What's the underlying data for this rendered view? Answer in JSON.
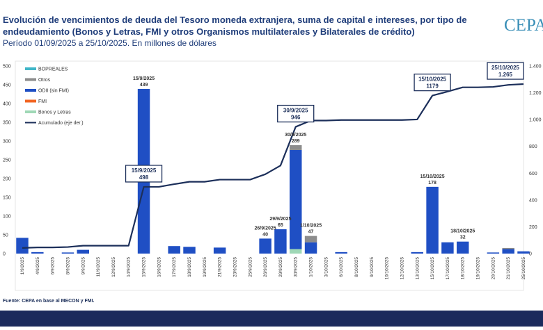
{
  "chart_data": {
    "type": "bar",
    "title_lines": [
      "Evolución de vencimientos de deuda del Tesoro moneda extranjera, suma de capital e intereses, por tipo de",
      "endeudamiento (Bonos y Letras, FMI y otros Organismos multilaterales y Bilaterales de crédito)"
    ],
    "subtitle": "Período 01/09/2025 a 25/10/2025. En millones de dólares",
    "logo": "CEPA",
    "source": "Fuente: CEPA en base al MECON y FMI.",
    "categories": [
      "1/9/2025",
      "4/9/2025",
      "6/9/2025",
      "8/9/2025",
      "9/9/2025",
      "11/9/2025",
      "12/9/2025",
      "14/9/2025",
      "15/9/2025",
      "16/9/2025",
      "17/9/2025",
      "18/9/2025",
      "19/9/2025",
      "21/9/2025",
      "23/9/2025",
      "25/9/2025",
      "26/9/2025",
      "29/9/2025",
      "30/9/2025",
      "1/10/2025",
      "3/10/2025",
      "6/10/2025",
      "8/10/2025",
      "9/10/2025",
      "10/10/2025",
      "12/10/2025",
      "13/10/2025",
      "15/10/2025",
      "17/10/2025",
      "18/10/2025",
      "19/10/2025",
      "20/10/2025",
      "21/10/2025",
      "25/10/2025"
    ],
    "series": [
      {
        "name": "BOPREALES",
        "color": "#3fb6c8",
        "values": [
          0,
          0,
          0,
          0,
          0,
          0,
          0,
          0,
          0,
          0,
          0,
          0,
          0,
          0,
          0,
          0,
          0,
          0,
          0,
          0,
          0,
          0,
          0,
          0,
          0,
          0,
          0,
          0,
          0,
          0,
          0,
          0,
          0,
          0
        ]
      },
      {
        "name": "Otros",
        "color": "#8c8c8c",
        "values": [
          0,
          0,
          0,
          0,
          0,
          0,
          0,
          0,
          0,
          0,
          0,
          0,
          0,
          0,
          0,
          0,
          0,
          0,
          13,
          17,
          0,
          0,
          0,
          0,
          0,
          0,
          0,
          0,
          0,
          0,
          0,
          0,
          3,
          0
        ]
      },
      {
        "name": "ODII (sin FMI)",
        "color": "#1f4fc4",
        "values": [
          42,
          4,
          0,
          3,
          10,
          0,
          0,
          0,
          439,
          0,
          20,
          18,
          0,
          16,
          0,
          0,
          40,
          65,
          264,
          30,
          0,
          4,
          0,
          0,
          0,
          0,
          4,
          178,
          30,
          32,
          0,
          3,
          12,
          6
        ]
      },
      {
        "name": "FMI",
        "color": "#f26522",
        "values": [
          0,
          0,
          0,
          0,
          0,
          0,
          0,
          0,
          0,
          0,
          0,
          0,
          0,
          0,
          0,
          0,
          0,
          0,
          0,
          0,
          0,
          0,
          0,
          0,
          0,
          0,
          0,
          0,
          0,
          0,
          0,
          0,
          0,
          0
        ]
      },
      {
        "name": "Bonos y Letras",
        "color": "#9fd8b6",
        "values": [
          0,
          0,
          0,
          0,
          0,
          0,
          0,
          0,
          0,
          0,
          0,
          0,
          0,
          0,
          0,
          0,
          0,
          0,
          12,
          0,
          0,
          0,
          0,
          0,
          0,
          0,
          0,
          0,
          0,
          0,
          0,
          0,
          0,
          0
        ]
      },
      {
        "name": "Acumulado (eje der.)",
        "color": "#1c2f5a",
        "axis": "y2",
        "values": [
          42,
          46,
          46,
          49,
          59,
          59,
          59,
          59,
          498,
          498,
          518,
          536,
          536,
          552,
          552,
          552,
          592,
          657,
          946,
          993,
          993,
          997,
          997,
          997,
          997,
          997,
          1001,
          1179,
          1209,
          1241,
          1241,
          1244,
          1259,
          1265
        ]
      }
    ],
    "bar_annotations": [
      {
        "label": "15/9/2025",
        "value": 439
      },
      {
        "label": "26/9/2025",
        "value": 40
      },
      {
        "label": "29/9/2025",
        "value": 65
      },
      {
        "label": "30/9/2025",
        "value": 289
      },
      {
        "label": "1/10/2025",
        "value": 47
      },
      {
        "label": "15/10/2025",
        "value": 178
      },
      {
        "label": "18/10/2025",
        "value": 32
      }
    ],
    "line_annotations": [
      {
        "label": "15/9/2025",
        "value": 498
      },
      {
        "label": "30/9/2025",
        "value": 946
      },
      {
        "label": "15/10/2025",
        "value": 1179
      },
      {
        "label": "25/10/2025",
        "value": 1265,
        "value_label": "1.265"
      }
    ],
    "ylim": [
      0,
      500
    ],
    "yticks": [
      0,
      50,
      100,
      150,
      200,
      250,
      300,
      350,
      400,
      450,
      500
    ],
    "y2lim": [
      0,
      1400
    ],
    "y2ticks": [
      0,
      200,
      400,
      600,
      800,
      {
        "value": 1000,
        "label": "1.000"
      },
      {
        "value": 1200,
        "label": "1.200"
      },
      {
        "value": 1400,
        "label": "1.400"
      }
    ],
    "grid": false,
    "legend": "upper left"
  }
}
